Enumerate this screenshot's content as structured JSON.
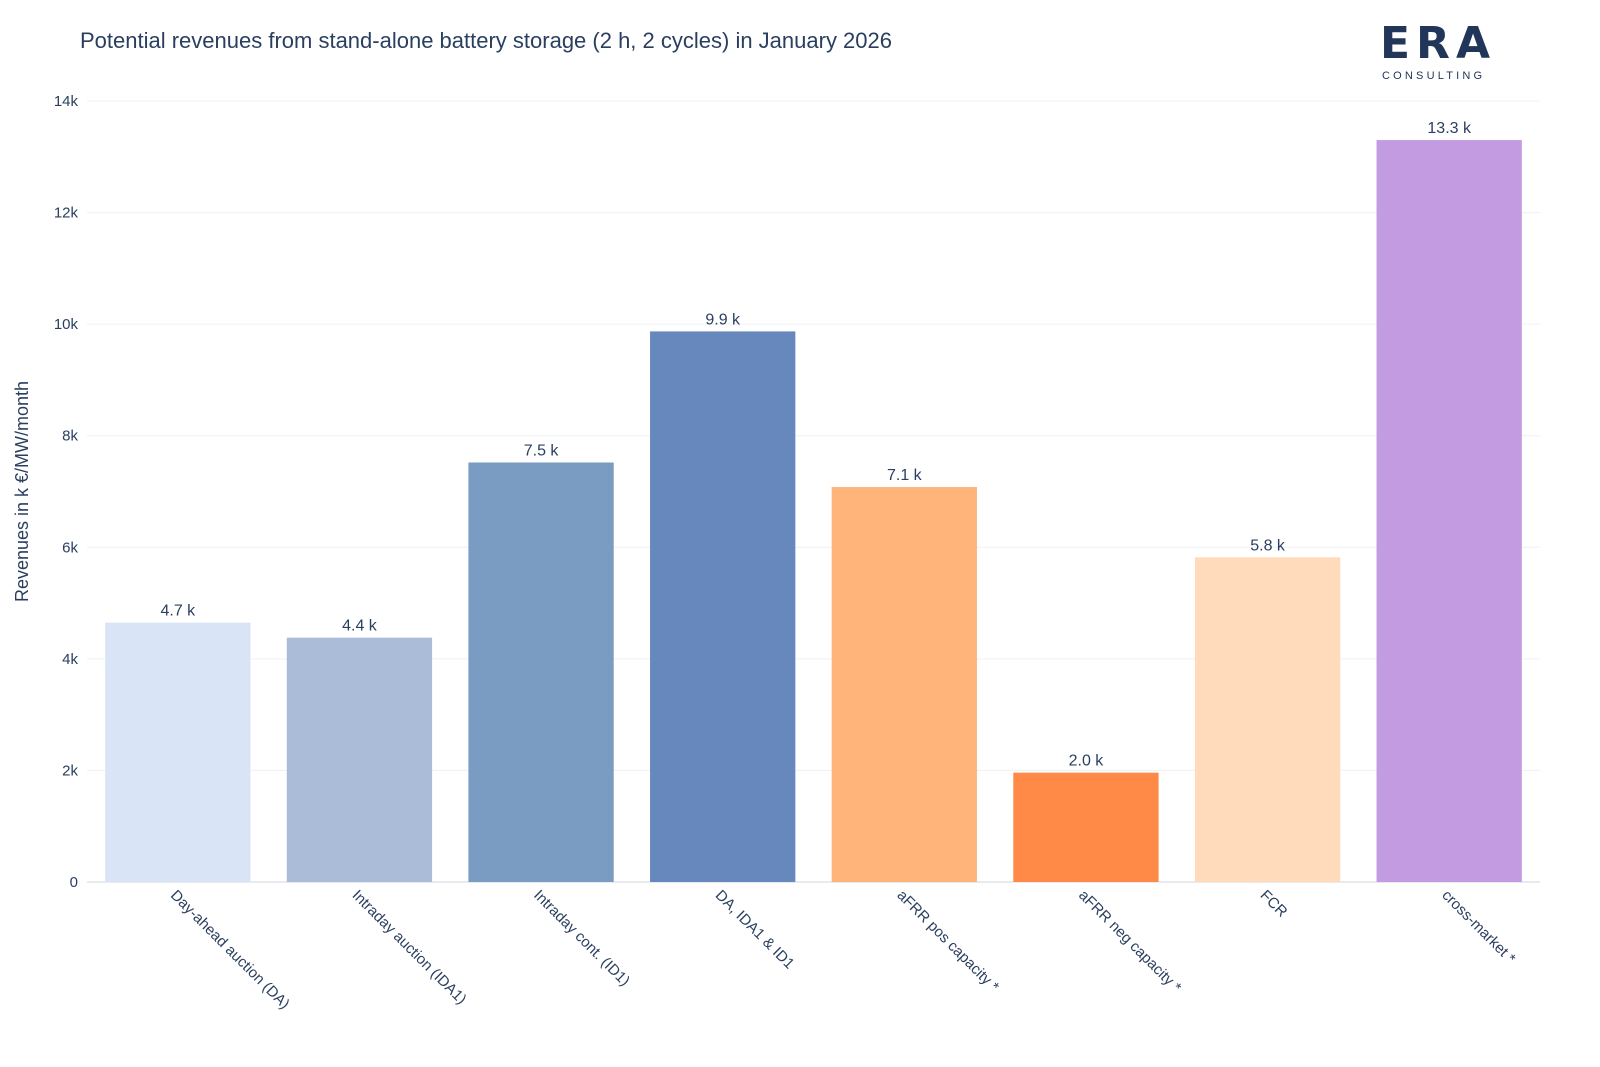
{
  "logo": {
    "name": "ERA",
    "tagline": "CONSULTING"
  },
  "chart_data": {
    "type": "bar",
    "title": "Potential revenues from stand-alone battery storage (2 h, 2 cycles) in January 2026",
    "xlabel": "",
    "ylabel": "Revenues in k €/MW/month",
    "ylim": [
      0,
      14000
    ],
    "yticks": [
      0,
      2000,
      4000,
      6000,
      8000,
      10000,
      12000,
      14000
    ],
    "ytick_labels": [
      "0",
      "2k",
      "4k",
      "6k",
      "8k",
      "10k",
      "12k",
      "14k"
    ],
    "grid": true,
    "categories": [
      "Day-ahead auction (DA)",
      "Intraday auction (IDA1)",
      "Intraday cont. (ID1)",
      "DA, IDA1 & ID1",
      "aFRR pos capacity *",
      "aFRR neg capacity *",
      "FCR",
      "cross-market *"
    ],
    "values": [
      4650,
      4380,
      7520,
      9870,
      7080,
      1960,
      5820,
      13300
    ],
    "data_labels": [
      "4.7 k",
      "4.4 k",
      "7.5 k",
      "9.9 k",
      "7.1 k",
      "2.0 k",
      "5.8 k",
      "13.3 k"
    ],
    "colors": [
      "#d9e5f6",
      "#abbcd8",
      "#7a9bc2",
      "#6788bd",
      "#ffb479",
      "#ff8a47",
      "#ffdabb",
      "#c39be1"
    ]
  }
}
